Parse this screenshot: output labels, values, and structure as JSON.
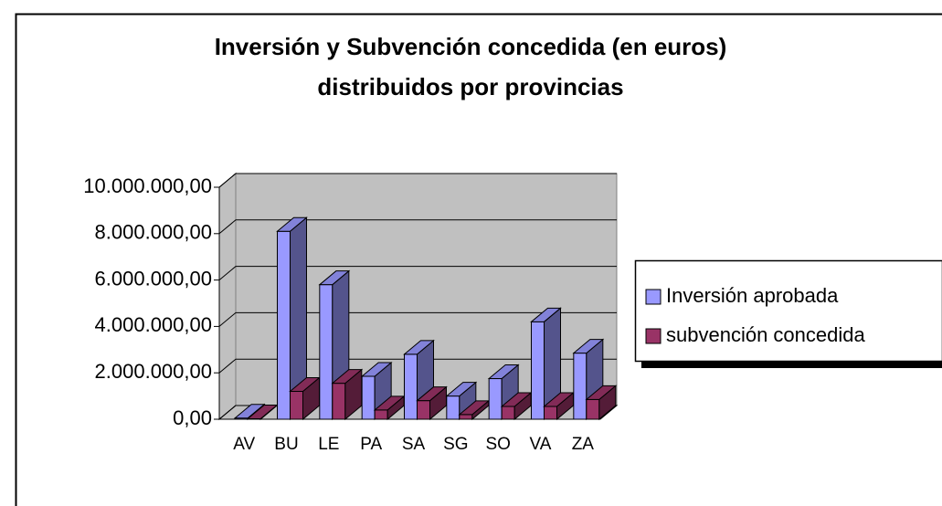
{
  "chart_data": {
    "type": "bar3d",
    "title": [
      "Inversión y Subvención concedida (en euros)",
      "distribuidos por provincias"
    ],
    "categories": [
      "AV",
      "BU",
      "LE",
      "PA",
      "SA",
      "SG",
      "SO",
      "VA",
      "ZA"
    ],
    "series": [
      {
        "name": "Inversión aprobada",
        "color": "#9999ff",
        "values": [
          50000,
          8100000,
          5800000,
          1850000,
          2800000,
          1000000,
          1750000,
          4200000,
          2850000
        ]
      },
      {
        "name": "subvención concedida",
        "color": "#993366",
        "values": [
          20000,
          1200000,
          1550000,
          400000,
          800000,
          200000,
          550000,
          550000,
          850000
        ]
      }
    ],
    "ylim": [
      0,
      10000000
    ],
    "yticks": [
      {
        "value": 0,
        "label": "0,00"
      },
      {
        "value": 2000000,
        "label": "2.000.000,00"
      },
      {
        "value": 4000000,
        "label": "4.000.000,00"
      },
      {
        "value": 6000000,
        "label": "6.000.000,00"
      },
      {
        "value": 8000000,
        "label": "8.000.000,00"
      },
      {
        "value": 10000000,
        "label": "10.000.000,00"
      }
    ],
    "grid": true,
    "legend": "right"
  }
}
